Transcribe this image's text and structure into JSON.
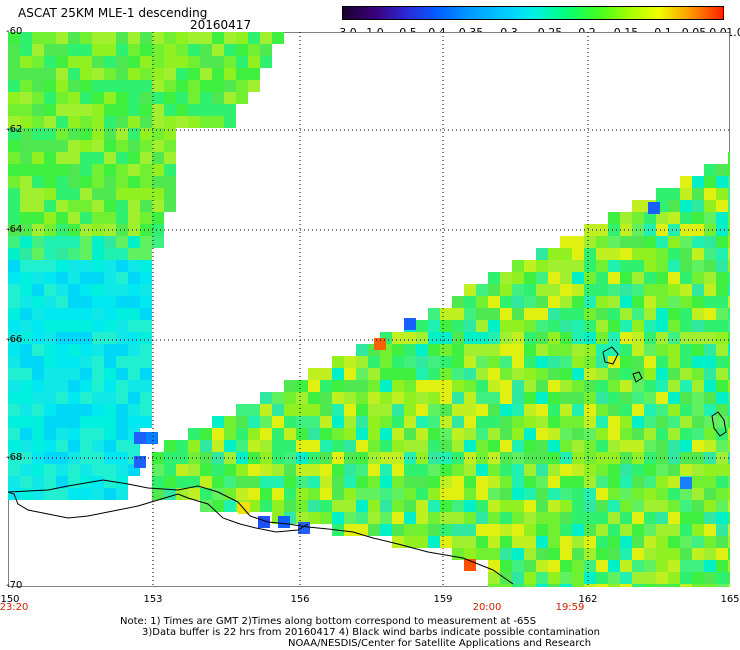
{
  "header": {
    "title": "ASCAT 25KM MLE-1 descending",
    "date": "20160417"
  },
  "colorbar": {
    "labels": [
      "-3.0",
      "-1.0",
      "-0.5",
      "-0.4",
      "-0.35",
      "-0.3",
      "-0.25",
      "-0.2",
      "-0.15",
      "-0.1",
      "-0.05",
      "0.0",
      "1.0"
    ],
    "colors": [
      "#1a0030",
      "#3a0078",
      "#2a2ad8",
      "#0060ff",
      "#0098ff",
      "#00c8ff",
      "#00f0e8",
      "#00ff80",
      "#40ff20",
      "#a0ff00",
      "#f0ff00",
      "#ff9000",
      "#ff2000"
    ]
  },
  "map": {
    "lat_labels": [
      "-60",
      "-62",
      "-64",
      "-66",
      "-68",
      "-70"
    ],
    "lon_labels": [
      "150",
      "153",
      "156",
      "159",
      "162",
      "165"
    ],
    "time_labels": [
      "23:20",
      "20:00",
      "19:59"
    ]
  },
  "notes": {
    "line1": "Note: 1) Times are GMT 2)Times along bottom correspond to measurement at -65S",
    "line2": "3)Data buffer is 22 hrs from 20160417 4) Black wind barbs indicate possible contamination",
    "line3": "NOAA/NESDIS/Center for Satellite Applications and Research"
  }
}
